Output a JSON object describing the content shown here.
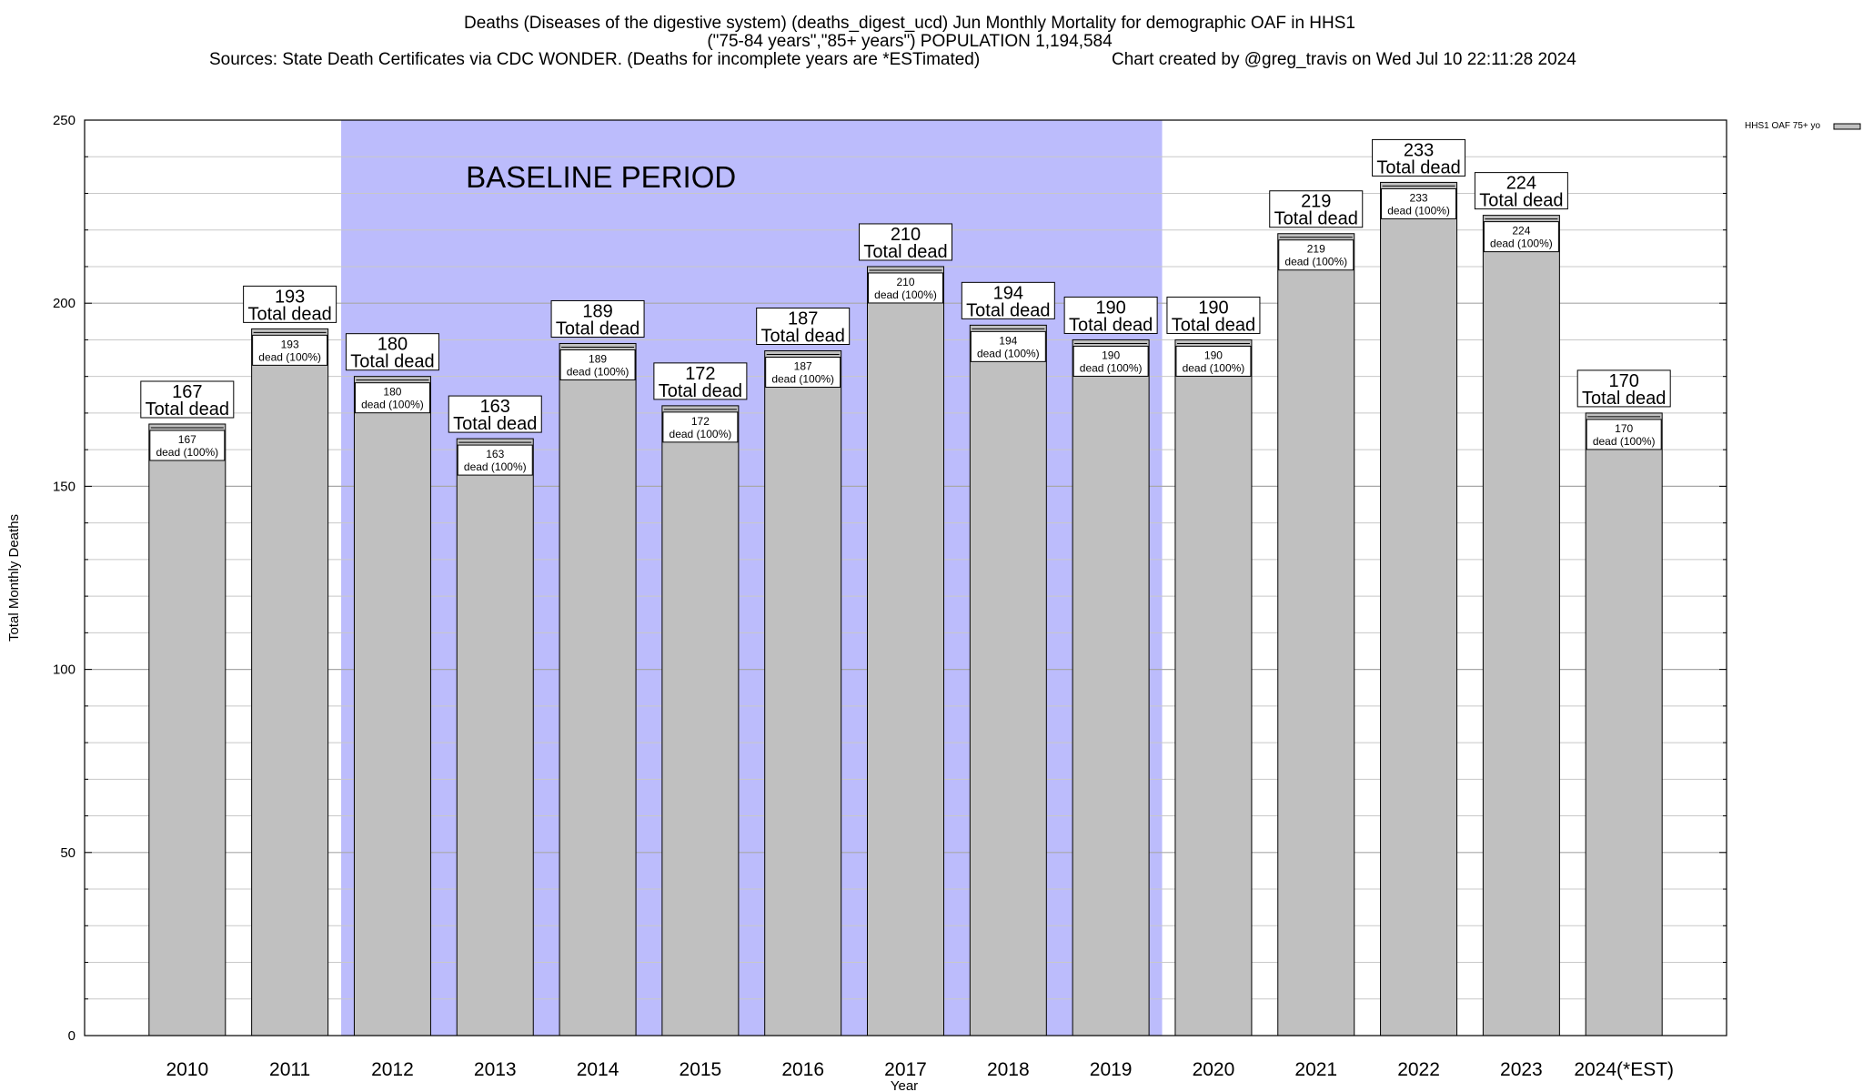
{
  "chart_data": {
    "type": "bar",
    "title": {
      "line1": "Deaths (Diseases of the digestive system) (deaths_digest_ucd) Jun Monthly Mortality for demographic OAF in HHS1",
      "line2": "(\"75-84 years\",\"85+ years\") POPULATION 1,194,584",
      "line3_left": "Sources: State Death Certificates via CDC WONDER. (Deaths for incomplete years are *ESTimated)",
      "line3_right": "Chart created by @greg_travis on Wed Jul 10 22:11:28 2024"
    },
    "xlabel": "Year",
    "ylabel": "Total Monthly Deaths",
    "ylim": [
      0,
      250
    ],
    "y_ticks": [
      0,
      50,
      100,
      150,
      200,
      250
    ],
    "y_minor_step": 10,
    "grid": true,
    "legend": {
      "position": "top-right",
      "label": "HHS1 OAF 75+ yo"
    },
    "baseline": {
      "label": "BASELINE PERIOD",
      "start": "2012",
      "end": "2019"
    },
    "categories": [
      "2010",
      "2011",
      "2012",
      "2013",
      "2014",
      "2015",
      "2016",
      "2017",
      "2018",
      "2019",
      "2020",
      "2021",
      "2022",
      "2023",
      "2024(*EST)"
    ],
    "series": [
      {
        "name": "HHS1 OAF 75+ yo",
        "values": [
          167,
          193,
          180,
          163,
          189,
          172,
          187,
          210,
          194,
          190,
          190,
          219,
          233,
          224,
          170
        ]
      }
    ],
    "top_label_suffix": "Total dead",
    "inner_label_suffix": "dead (100%)",
    "colors": {
      "bar_fill": "#c0c0c0",
      "baseline_fill": "#bcbcfc",
      "grid": "#c8c8c8",
      "axis": "#000000"
    }
  }
}
